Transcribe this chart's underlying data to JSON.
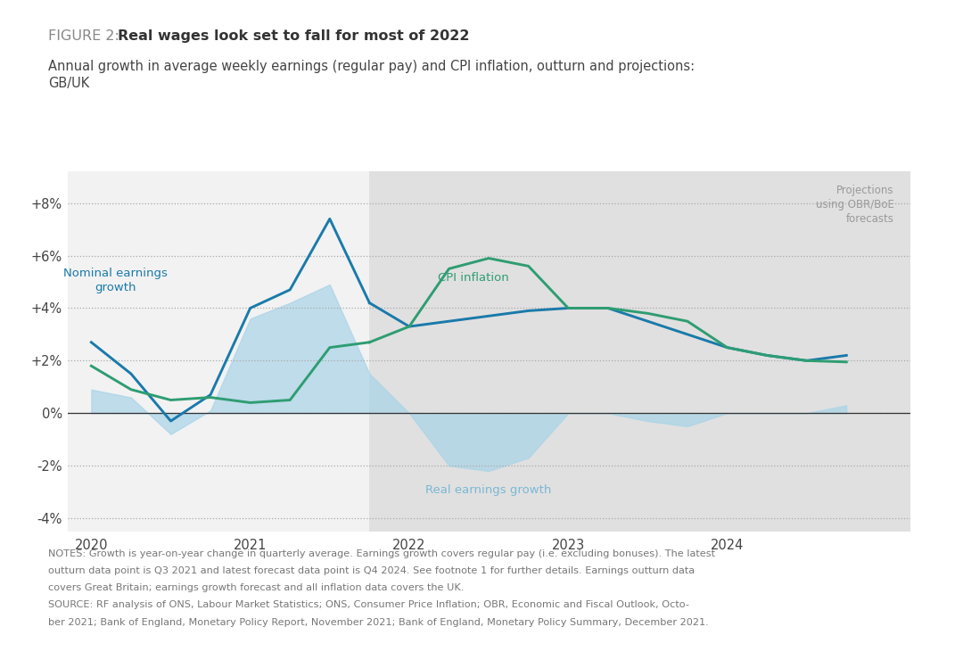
{
  "title_prefix": "FIGURE 2: ",
  "title_bold": "Real wages look set to fall for most of 2022",
  "subtitle": "Annual growth in average weekly earnings (regular pay) and CPI inflation, outturn and projections:\nGB/UK",
  "notes_line1": "NOTES: Growth is year-on-year change in quarterly average. Earnings growth covers regular pay (i.e. excluding bonuses). The latest",
  "notes_line2": "outturn data point is Q3 2021 and latest forecast data point is Q4 2024. See footnote 1 for further details. Earnings outturn data",
  "notes_line3": "covers Great Britain; earnings growth forecast and all inflation data covers the UK.",
  "notes_line4": "SOURCE: RF analysis of ONS, Labour Market Statistics; ONS, Consumer Price Inflation; OBR, Economic and Fiscal Outlook, Octo-",
  "notes_line5": "ber 2021; Bank of England, Monetary Policy Report, November 2021; Bank of England, Monetary Policy Summary, December 2021.",
  "projection_start_x": 2021.75,
  "bg_color": "#f2f2f2",
  "projection_bg_color": "#e0e0e0",
  "chart_bg_color": "#f2f2f2",
  "nominal_color": "#1a7aaa",
  "cpi_color": "#2e9d72",
  "real_fill_color": "#a8d4e8",
  "real_fill_alpha": 0.7,
  "annotation_real_color": "#7ab8d4",
  "yticks": [
    -4,
    -2,
    0,
    2,
    4,
    6,
    8
  ],
  "ylim": [
    -4.5,
    9.2
  ],
  "xlim": [
    2019.85,
    2025.15
  ],
  "nominal_x": [
    2020.0,
    2020.25,
    2020.5,
    2020.75,
    2021.0,
    2021.25,
    2021.5,
    2021.75
  ],
  "nominal_y": [
    2.7,
    1.5,
    -0.3,
    0.7,
    4.0,
    4.7,
    7.4,
    4.2
  ],
  "nominal_proj_x": [
    2021.75,
    2022.0,
    2022.25,
    2022.5,
    2022.75,
    2023.0,
    2023.25,
    2023.5,
    2023.75,
    2024.0,
    2024.25,
    2024.5,
    2024.75
  ],
  "nominal_proj_y": [
    4.2,
    3.3,
    3.5,
    3.7,
    3.9,
    4.0,
    4.0,
    3.5,
    3.0,
    2.5,
    2.2,
    2.0,
    2.2
  ],
  "cpi_x": [
    2020.0,
    2020.25,
    2020.5,
    2020.75,
    2021.0,
    2021.25,
    2021.5,
    2021.75
  ],
  "cpi_y": [
    1.8,
    0.9,
    0.5,
    0.6,
    0.4,
    0.5,
    2.5,
    2.7
  ],
  "cpi_proj_x": [
    2021.75,
    2022.0,
    2022.25,
    2022.5,
    2022.75,
    2023.0,
    2023.25,
    2023.5,
    2023.75,
    2024.0,
    2024.25,
    2024.5,
    2024.75
  ],
  "cpi_proj_y": [
    2.7,
    3.3,
    5.5,
    5.9,
    5.6,
    4.0,
    4.0,
    3.8,
    3.5,
    2.5,
    2.2,
    2.0,
    1.95
  ],
  "real_x": [
    2020.0,
    2020.25,
    2020.5,
    2020.75,
    2021.0,
    2021.25,
    2021.5,
    2021.75
  ],
  "real_y": [
    0.9,
    0.6,
    -0.8,
    0.1,
    3.6,
    4.2,
    4.9,
    1.5
  ],
  "real_proj_x": [
    2021.75,
    2022.0,
    2022.25,
    2022.5,
    2022.75,
    2023.0,
    2023.25,
    2023.5,
    2023.75,
    2024.0,
    2024.25,
    2024.5,
    2024.75
  ],
  "real_proj_y": [
    1.5,
    0.0,
    -2.0,
    -2.2,
    -1.7,
    0.0,
    0.0,
    -0.3,
    -0.5,
    0.0,
    0.0,
    0.0,
    0.3
  ]
}
